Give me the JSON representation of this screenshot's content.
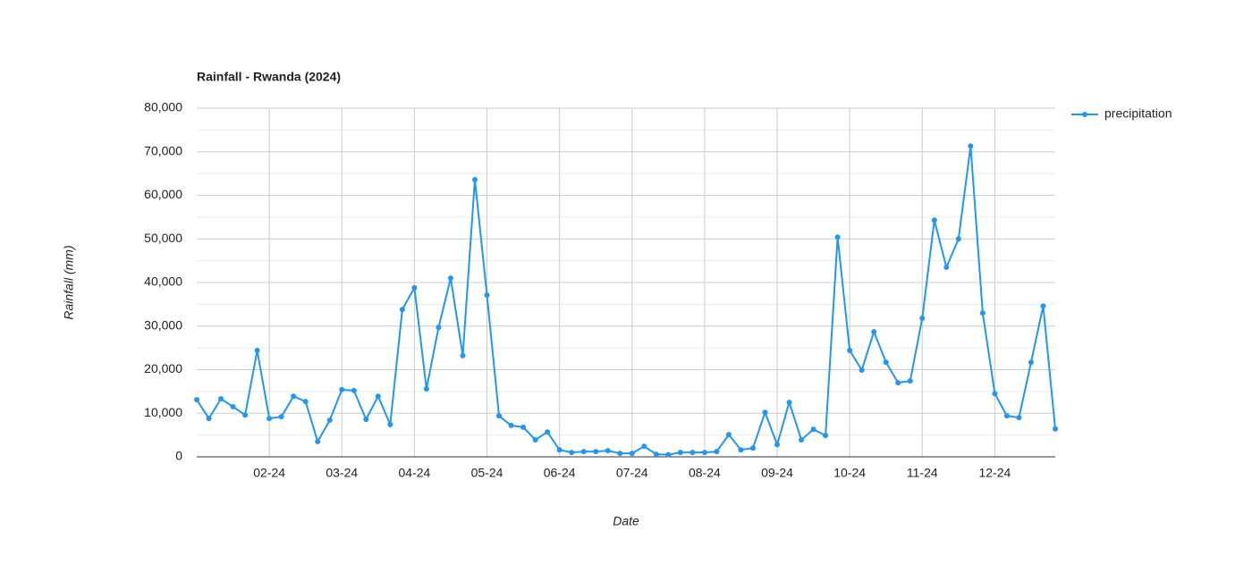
{
  "chart_data": {
    "type": "line",
    "title": "Rainfall - Rwanda (2024)",
    "x_label": "Date",
    "y_label": "Rainfall (mm)",
    "categories": [
      null,
      null,
      null,
      null,
      null,
      null,
      "02-24",
      null,
      null,
      null,
      null,
      null,
      "03-24",
      null,
      null,
      null,
      null,
      null,
      "04-24",
      null,
      null,
      null,
      null,
      null,
      "05-24",
      null,
      null,
      null,
      null,
      null,
      "06-24",
      null,
      null,
      null,
      null,
      null,
      "07-24",
      null,
      null,
      null,
      null,
      null,
      "08-24",
      null,
      null,
      null,
      null,
      null,
      "09-24",
      null,
      null,
      null,
      null,
      null,
      "10-24",
      null,
      null,
      null,
      null,
      null,
      "11-24",
      null,
      null,
      null,
      null,
      null,
      "12-24",
      null,
      null,
      null,
      null,
      null
    ],
    "series": [
      {
        "name": "precipitation",
        "color": "#2196f3",
        "values": [
          13100,
          8800,
          13300,
          11500,
          9600,
          24400,
          8800,
          9200,
          13900,
          12700,
          3500,
          8400,
          15400,
          15200,
          8600,
          13900,
          7400,
          33800,
          38800,
          15600,
          29700,
          41000,
          23200,
          63600,
          37100,
          9400,
          7200,
          6800,
          3900,
          5700,
          1600,
          1000,
          1200,
          1200,
          1400,
          800,
          800,
          2400,
          600,
          500,
          1000,
          1000,
          1000,
          1200,
          5100,
          1600,
          2000,
          10200,
          2800,
          12500,
          3900,
          6300,
          4900,
          50400,
          24400,
          19900,
          28700,
          21700,
          17000,
          17400,
          31800,
          54300,
          43500,
          50000,
          71300,
          33000,
          14500,
          9400,
          9000,
          21700,
          34600,
          6400
        ]
      }
    ],
    "ylim": [
      0,
      80000
    ],
    "yticks": [
      0,
      {
        "value": 10000,
        "label": "10,000"
      },
      {
        "value": 20000,
        "label": "20,000"
      },
      {
        "value": 30000,
        "label": "30,000"
      },
      {
        "value": 40000,
        "label": "40,000"
      },
      {
        "value": 50000,
        "label": "50,000"
      },
      {
        "value": 60000,
        "label": "60,000"
      },
      {
        "value": 70000,
        "label": "70,000"
      },
      {
        "value": 80000,
        "label": "80,000"
      }
    ],
    "grid": true,
    "legend": "right"
  }
}
